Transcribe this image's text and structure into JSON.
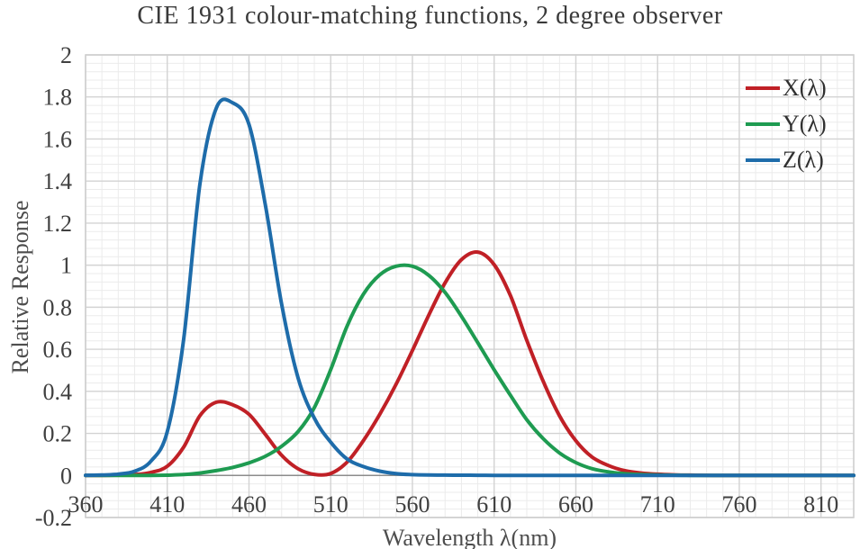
{
  "title": "CIE 1931 colour-matching functions, 2 degree observer",
  "axes": {
    "x_title": "Wavelength λ(nm)",
    "y_title": "Relative Response"
  },
  "chart_data": {
    "type": "line",
    "title": "CIE 1931 colour-matching functions, 2 degree observer",
    "xlabel": "Wavelength λ(nm)",
    "ylabel": "Relative Response",
    "xlim": [
      360,
      830
    ],
    "ylim": [
      -0.2,
      2
    ],
    "x_major_step": 50,
    "x_minor_step": 10,
    "y_major_step": 0.2,
    "y_minor_step": 0.04,
    "grid": "major+minor",
    "legend_position": "inside-top-right",
    "x_tick_labels": [
      "360",
      "410",
      "460",
      "510",
      "560",
      "610",
      "660",
      "710",
      "760",
      "810"
    ],
    "y_tick_labels": [
      "2",
      "1.8",
      "1.6",
      "1.4",
      "1.2",
      "1",
      "0.8",
      "0.6",
      "0.4",
      "0.2",
      "0",
      "-0.2"
    ],
    "x": [
      360,
      370,
      380,
      390,
      400,
      410,
      420,
      430,
      440,
      450,
      460,
      470,
      480,
      490,
      500,
      510,
      520,
      530,
      540,
      550,
      560,
      570,
      580,
      590,
      600,
      610,
      620,
      630,
      640,
      650,
      660,
      670,
      680,
      690,
      700,
      710,
      720,
      730,
      740,
      750,
      760,
      770,
      780,
      790,
      800,
      810,
      820,
      830
    ],
    "series": [
      {
        "name": "X(λ)",
        "color": "#C02026",
        "values": [
          0.00013,
          0.00041,
          0.00137,
          0.00424,
          0.01431,
          0.04351,
          0.13438,
          0.2839,
          0.34828,
          0.3362,
          0.2908,
          0.19536,
          0.09564,
          0.03201,
          0.0049,
          0.0093,
          0.06327,
          0.1655,
          0.2904,
          0.43345,
          0.5945,
          0.7621,
          0.9163,
          1.0263,
          1.0622,
          1.0026,
          0.85445,
          0.6424,
          0.4479,
          0.2835,
          0.1649,
          0.0874,
          0.04677,
          0.0227,
          0.01136,
          0.00579,
          0.0029,
          0.00144,
          0.00069,
          0.00033,
          0.00017,
          8e-05,
          4e-05,
          2e-05,
          1e-05,
          1e-05,
          0,
          0
        ]
      },
      {
        "name": "Y(λ)",
        "color": "#1E9B51",
        "values": [
          0,
          1e-05,
          4e-05,
          0.00012,
          0.0004,
          0.00121,
          0.004,
          0.0116,
          0.023,
          0.038,
          0.06,
          0.09098,
          0.13902,
          0.20802,
          0.323,
          0.503,
          0.71,
          0.862,
          0.954,
          0.99495,
          0.995,
          0.952,
          0.87,
          0.757,
          0.631,
          0.503,
          0.381,
          0.265,
          0.175,
          0.107,
          0.061,
          0.032,
          0.017,
          0.00821,
          0.0041,
          0.00209,
          0.00105,
          0.00052,
          0.00025,
          0.00012,
          6e-05,
          3e-05,
          2e-05,
          1e-05,
          0,
          0,
          0,
          0
        ]
      },
      {
        "name": "Z(λ)",
        "color": "#1E6CAA",
        "values": [
          0.00061,
          0.00195,
          0.00645,
          0.02005,
          0.06785,
          0.2074,
          0.6456,
          1.3856,
          1.74706,
          1.77211,
          1.6692,
          1.28764,
          0.81295,
          0.46518,
          0.272,
          0.1582,
          0.07825,
          0.04216,
          0.0203,
          0.00875,
          0.0039,
          0.0021,
          0.00165,
          0.0011,
          0.0008,
          0.00034,
          0.00019,
          5e-05,
          2e-05,
          0,
          0,
          0,
          0,
          0,
          0,
          0,
          0,
          0,
          0,
          0,
          0,
          0,
          0,
          0,
          0,
          0,
          0,
          0
        ]
      }
    ],
    "style": {
      "minor_grid_color": "#EBEBEB",
      "major_grid_color": "#D3D3D3",
      "frame_color": "#CFCFCF",
      "zero_axis_color": "#8C8C8C",
      "line_width": 4
    }
  }
}
